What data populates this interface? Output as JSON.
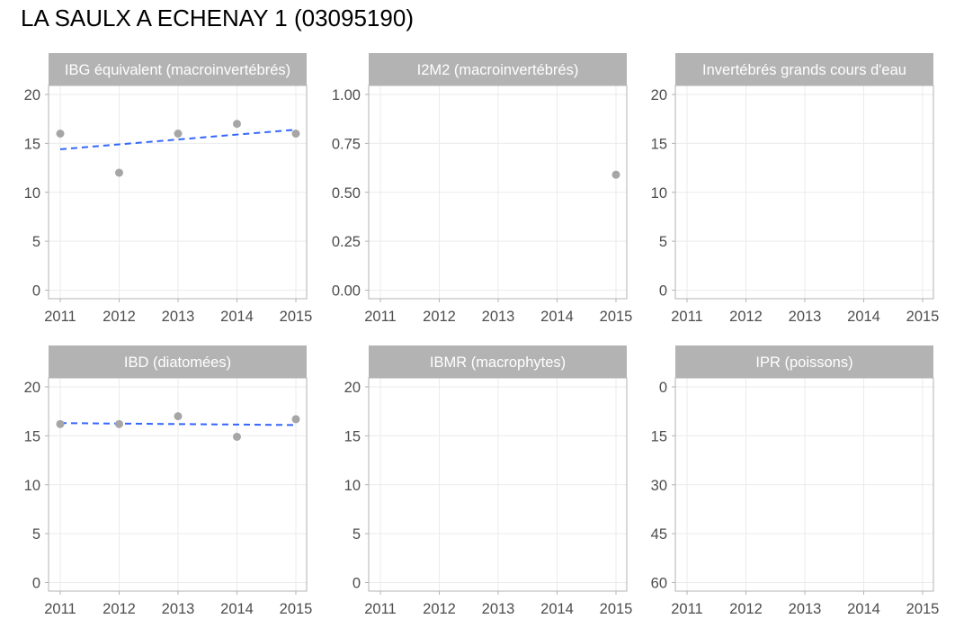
{
  "title": "LA SAULX A ECHENAY 1 (03095190)",
  "colors": {
    "strip_bg": "#b3b3b3",
    "grid": "#ebebeb",
    "panel_border": "#b3b3b3",
    "point": "#a6a6a6",
    "trend": "#3366ff"
  },
  "chart_data": [
    {
      "type": "scatter",
      "title": "IBG équivalent (macroinvertébrés)",
      "x_ticks": [
        "2011",
        "2012",
        "2013",
        "2014",
        "2015"
      ],
      "y_ticks": [
        "0",
        "5",
        "10",
        "15",
        "20"
      ],
      "ylim": [
        0,
        20
      ],
      "y_reversed": false,
      "points": [
        {
          "x": 2011,
          "y": 16
        },
        {
          "x": 2012,
          "y": 12
        },
        {
          "x": 2013,
          "y": 16
        },
        {
          "x": 2014,
          "y": 17
        },
        {
          "x": 2015,
          "y": 16
        }
      ],
      "trend": [
        {
          "x": 2011,
          "y": 14.4
        },
        {
          "x": 2015,
          "y": 16.4
        }
      ]
    },
    {
      "type": "scatter",
      "title": "I2M2 (macroinvertébrés)",
      "x_ticks": [
        "2011",
        "2012",
        "2013",
        "2014",
        "2015"
      ],
      "y_ticks": [
        "0.00",
        "0.25",
        "0.50",
        "0.75",
        "1.00"
      ],
      "ylim": [
        0,
        1
      ],
      "y_reversed": false,
      "points": [
        {
          "x": 2015,
          "y": 0.59
        }
      ],
      "trend": []
    },
    {
      "type": "scatter",
      "title": "Invertébrés grands cours d'eau",
      "x_ticks": [
        "2011",
        "2012",
        "2013",
        "2014",
        "2015"
      ],
      "y_ticks": [
        "0",
        "5",
        "10",
        "15",
        "20"
      ],
      "ylim": [
        0,
        20
      ],
      "y_reversed": false,
      "points": [],
      "trend": []
    },
    {
      "type": "scatter",
      "title": "IBD (diatomées)",
      "x_ticks": [
        "2011",
        "2012",
        "2013",
        "2014",
        "2015"
      ],
      "y_ticks": [
        "5",
        "10",
        "15",
        "20"
      ],
      "y_ticks_full": [
        "0",
        "5",
        "10",
        "15",
        "20"
      ],
      "ylim": [
        0,
        20
      ],
      "y_reversed": false,
      "points": [
        {
          "x": 2011,
          "y": 16.2
        },
        {
          "x": 2012,
          "y": 16.2
        },
        {
          "x": 2013,
          "y": 17
        },
        {
          "x": 2014,
          "y": 14.9
        },
        {
          "x": 2015,
          "y": 16.7
        }
      ],
      "trend": [
        {
          "x": 2011,
          "y": 16.3
        },
        {
          "x": 2015,
          "y": 16.1
        }
      ]
    },
    {
      "type": "scatter",
      "title": "IBMR (macrophytes)",
      "x_ticks": [
        "2011",
        "2012",
        "2013",
        "2014",
        "2015"
      ],
      "y_ticks": [
        "0",
        "5",
        "10",
        "15",
        "20"
      ],
      "ylim": [
        0,
        20
      ],
      "y_reversed": false,
      "points": [],
      "trend": []
    },
    {
      "type": "scatter",
      "title": "IPR (poissons)",
      "x_ticks": [
        "2011",
        "2012",
        "2013",
        "2014",
        "2015"
      ],
      "y_ticks": [
        "0",
        "15",
        "30",
        "45",
        "60"
      ],
      "ylim": [
        0,
        60
      ],
      "y_reversed": true,
      "points": [],
      "trend": []
    }
  ]
}
